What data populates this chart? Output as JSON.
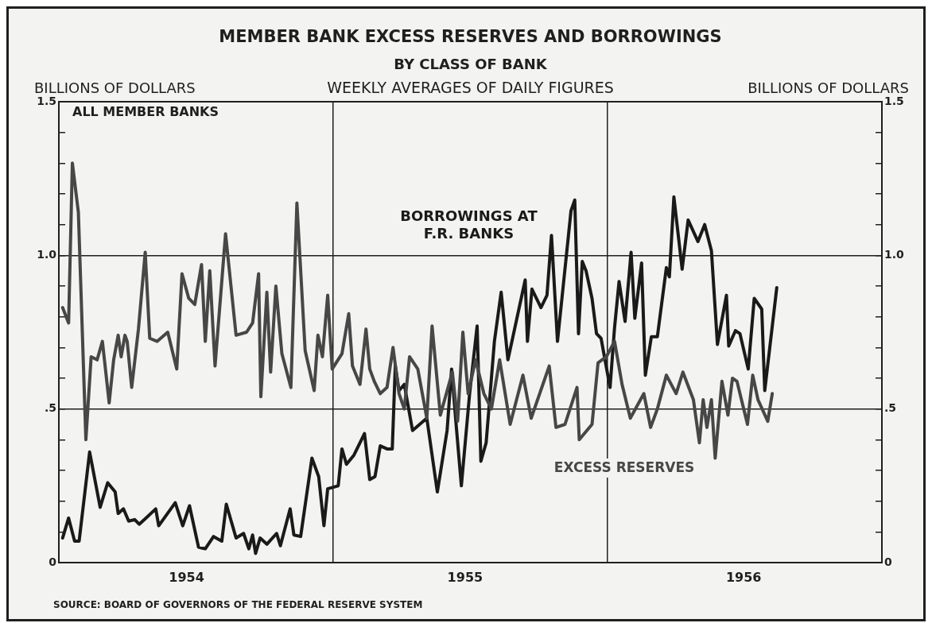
{
  "chart_data": {
    "type": "line",
    "title": "MEMBER BANK EXCESS RESERVES AND BORROWINGS",
    "subtitle": "BY CLASS OF BANK",
    "ylabel": "BILLIONS OF DOLLARS",
    "y2label": "BILLIONS OF DOLLARS",
    "annotations": [
      "WEEKLY AVERAGES OF DAILY FIGURES",
      "ALL MEMBER BANKS",
      "SOURCE: BOARD OF GOVERNORS OF THE FEDERAL RESERVE SYSTEM"
    ],
    "xlim": [
      "1954-01-01",
      "1957-01-01"
    ],
    "xticks": [
      {
        "value": "1954-06-20",
        "label": "1954"
      },
      {
        "value": "1955-01-01",
        "label": null
      },
      {
        "value": "1955-06-26",
        "label": "1955"
      },
      {
        "value": "1956-01-01",
        "label": null
      },
      {
        "value": "1956-07-01",
        "label": "1956"
      }
    ],
    "ylim": [
      0,
      1.5
    ],
    "yticks": [
      0,
      {
        "value": 0.1,
        "label": null
      },
      {
        "value": 0.2,
        "label": null
      },
      {
        "value": 0.3,
        "label": null
      },
      {
        "value": 0.4,
        "label": null
      },
      {
        "value": 0.5,
        "label": ".5"
      },
      {
        "value": 0.6,
        "label": null
      },
      {
        "value": 0.7,
        "label": null
      },
      {
        "value": 0.8,
        "label": null
      },
      {
        "value": 0.9,
        "label": null
      },
      {
        "value": 1,
        "label": "1.0"
      },
      {
        "value": 1.1,
        "label": null
      },
      {
        "value": 1.2,
        "label": null
      },
      {
        "value": 1.3,
        "label": null
      },
      {
        "value": 1.4,
        "label": null
      },
      {
        "value": 1.5,
        "label": "1.5"
      }
    ],
    "y2lim": [
      0,
      1.5
    ],
    "y2ticks": [
      0,
      {
        "value": 0.1,
        "label": null
      },
      {
        "value": 0.2,
        "label": null
      },
      {
        "value": 0.3,
        "label": null
      },
      {
        "value": 0.4,
        "label": null
      },
      {
        "value": 0.5,
        "label": ".5"
      },
      {
        "value": 0.6,
        "label": null
      },
      {
        "value": 0.7,
        "label": null
      },
      {
        "value": 0.8,
        "label": null
      },
      {
        "value": 0.9,
        "label": null
      },
      {
        "value": 1,
        "label": "1.0"
      },
      {
        "value": 1.1,
        "label": null
      },
      {
        "value": 1.2,
        "label": null
      },
      {
        "value": 1.3,
        "label": null
      },
      {
        "value": 1.4,
        "label": null
      },
      {
        "value": 1.5,
        "label": "1.5"
      }
    ],
    "grid": true,
    "series": [
      {
        "name": "EXCESS RESERVES",
        "color": "#474747",
        "x": [
          "1954-01-06",
          "1954-01-14",
          "1954-01-19",
          "1954-01-27",
          "1954-02-06",
          "1954-02-13",
          "1954-02-21",
          "1954-02-28",
          "1954-03-09",
          "1954-03-15",
          "1954-03-21",
          "1954-03-25",
          "1954-03-30",
          "1954-04-02",
          "1954-04-08",
          "1954-04-17",
          "1954-04-26",
          "1954-05-02",
          "1954-05-12",
          "1954-05-26",
          "1954-06-07",
          "1954-06-14",
          "1954-06-23",
          "1954-07-01",
          "1954-07-10",
          "1954-07-15",
          "1954-07-21",
          "1954-07-28",
          "1954-08-11",
          "1954-08-25",
          "1954-09-08",
          "1954-09-16",
          "1954-09-24",
          "1954-09-27",
          "1954-10-05",
          "1954-10-10",
          "1954-10-17",
          "1954-10-25",
          "1954-11-06",
          "1954-11-14",
          "1954-11-25",
          "1954-12-07",
          "1954-12-12",
          "1954-12-18",
          "1954-12-25",
          "1954-12-31",
          "1955-01-13",
          "1955-01-22",
          "1955-01-27",
          "1955-02-06",
          "1955-02-14",
          "1955-02-19",
          "1955-02-25",
          "1955-03-05",
          "1955-03-14",
          "1955-03-22",
          "1955-03-30",
          "1955-04-06",
          "1955-04-13",
          "1955-04-24",
          "1955-05-06",
          "1955-05-13",
          "1955-05-24",
          "1955-06-09",
          "1955-06-16",
          "1955-06-23",
          "1955-06-30",
          "1955-07-10",
          "1955-07-21",
          "1955-07-31",
          "1955-08-11",
          "1955-08-25",
          "1955-09-11",
          "1955-09-22",
          "1955-10-16",
          "1955-10-25",
          "1955-11-06",
          "1955-11-22",
          "1955-11-25",
          "1955-12-12",
          "1955-12-20",
          "1955-12-31",
          "1956-01-11",
          "1956-01-21",
          "1956-02-01",
          "1956-02-19",
          "1956-02-28",
          "1956-03-08",
          "1956-03-20",
          "1956-04-02",
          "1956-04-11",
          "1956-04-25",
          "1956-05-03",
          "1956-05-08",
          "1956-05-13",
          "1956-05-19",
          "1956-05-24",
          "1956-06-02",
          "1956-06-10",
          "1956-06-16",
          "1956-06-22",
          "1956-07-06",
          "1956-07-13",
          "1956-07-20",
          "1956-08-02",
          "1956-08-08"
        ],
        "values": [
          0.83,
          0.78,
          1.3,
          1.14,
          0.4,
          0.67,
          0.66,
          0.72,
          0.52,
          0.66,
          0.74,
          0.67,
          0.74,
          0.72,
          0.57,
          0.76,
          1.01,
          0.73,
          0.72,
          0.75,
          0.63,
          0.94,
          0.86,
          0.84,
          0.97,
          0.72,
          0.95,
          0.64,
          1.07,
          0.74,
          0.75,
          0.78,
          0.94,
          0.54,
          0.88,
          0.62,
          0.9,
          0.68,
          0.57,
          1.17,
          0.69,
          0.56,
          0.74,
          0.67,
          0.87,
          0.63,
          0.68,
          0.81,
          0.64,
          0.58,
          0.76,
          0.63,
          0.59,
          0.55,
          0.57,
          0.7,
          0.55,
          0.5,
          0.67,
          0.63,
          0.47,
          0.77,
          0.48,
          0.62,
          0.46,
          0.75,
          0.55,
          0.66,
          0.55,
          0.5,
          0.66,
          0.45,
          0.61,
          0.47,
          0.64,
          0.44,
          0.45,
          0.57,
          0.4,
          0.45,
          0.65,
          0.67,
          0.72,
          0.58,
          0.47,
          0.55,
          0.44,
          0.5,
          0.61,
          0.55,
          0.62,
          0.53,
          0.39,
          0.53,
          0.44,
          0.53,
          0.34,
          0.59,
          0.48,
          0.6,
          0.59,
          0.45,
          0.61,
          0.53,
          0.46,
          0.55
        ]
      },
      {
        "name": "BORROWINGS AT F.R. BANKS",
        "color": "#1a1a1a",
        "x": [
          "1954-01-06",
          "1954-01-14",
          "1954-01-22",
          "1954-01-28",
          "1954-02-11",
          "1954-02-25",
          "1954-03-07",
          "1954-03-17",
          "1954-03-21",
          "1954-03-28",
          "1954-04-04",
          "1954-04-12",
          "1954-04-18",
          "1954-04-27",
          "1954-05-10",
          "1954-05-14",
          "1954-06-05",
          "1954-06-15",
          "1954-06-24",
          "1954-07-06",
          "1954-07-15",
          "1954-07-26",
          "1954-08-06",
          "1954-08-12",
          "1954-08-25",
          "1954-09-04",
          "1954-09-11",
          "1954-09-16",
          "1954-09-20",
          "1954-09-26",
          "1954-10-05",
          "1954-10-18",
          "1954-10-23",
          "1954-11-05",
          "1954-11-10",
          "1954-11-19",
          "1954-12-04",
          "1954-12-13",
          "1954-12-20",
          "1954-12-25",
          "1955-01-08",
          "1955-01-13",
          "1955-01-19",
          "1955-01-29",
          "1955-02-12",
          "1955-02-19",
          "1955-02-26",
          "1955-03-05",
          "1955-03-14",
          "1955-03-21",
          "1955-03-25",
          "1955-03-30",
          "1955-04-06",
          "1955-04-17",
          "1955-05-06",
          "1955-05-20",
          "1955-06-02",
          "1955-06-08",
          "1955-06-14",
          "1955-06-21",
          "1955-07-02",
          "1955-07-12",
          "1955-07-17",
          "1955-07-24",
          "1955-08-04",
          "1955-08-13",
          "1955-08-22",
          "1955-09-14",
          "1955-09-17",
          "1955-09-23",
          "1955-10-05",
          "1955-10-13",
          "1955-10-19",
          "1955-10-27",
          "1955-11-14",
          "1955-11-19",
          "1955-11-24",
          "1955-11-29",
          "1955-12-04",
          "1955-12-12",
          "1955-12-18",
          "1955-12-24",
          "1956-01-05",
          "1956-01-11",
          "1956-01-17",
          "1956-01-25",
          "1956-02-02",
          "1956-02-07",
          "1956-02-16",
          "1956-02-21",
          "1956-02-29",
          "1956-03-08",
          "1956-03-20",
          "1956-03-24",
          "1956-03-30",
          "1956-04-10",
          "1956-04-18",
          "1956-05-01",
          "1956-05-10",
          "1956-05-19",
          "1956-05-27",
          "1956-06-08",
          "1956-06-11",
          "1956-06-20",
          "1956-06-26",
          "1956-07-07",
          "1956-07-15",
          "1956-07-25",
          "1956-07-29",
          "1956-08-14"
        ],
        "values": [
          0.08,
          0.145,
          0.07,
          0.07,
          0.36,
          0.18,
          0.26,
          0.23,
          0.16,
          0.175,
          0.135,
          0.14,
          0.125,
          0.145,
          0.175,
          0.12,
          0.195,
          0.12,
          0.185,
          0.05,
          0.045,
          0.085,
          0.07,
          0.19,
          0.08,
          0.095,
          0.045,
          0.09,
          0.03,
          0.08,
          0.06,
          0.095,
          0.055,
          0.175,
          0.09,
          0.085,
          0.34,
          0.28,
          0.12,
          0.24,
          0.25,
          0.37,
          0.32,
          0.35,
          0.42,
          0.27,
          0.28,
          0.38,
          0.37,
          0.37,
          0.64,
          0.56,
          0.58,
          0.43,
          0.47,
          0.23,
          0.43,
          0.63,
          0.45,
          0.25,
          0.55,
          0.77,
          0.33,
          0.39,
          0.72,
          0.88,
          0.66,
          0.92,
          0.72,
          0.89,
          0.83,
          0.87,
          1.065,
          0.72,
          1.145,
          1.18,
          0.745,
          0.98,
          0.95,
          0.86,
          0.745,
          0.73,
          0.57,
          0.765,
          0.915,
          0.785,
          1.01,
          0.795,
          0.975,
          0.61,
          0.735,
          0.735,
          0.96,
          0.93,
          1.19,
          0.955,
          1.115,
          1.045,
          1.1,
          1.015,
          0.71,
          0.87,
          0.705,
          0.755,
          0.745,
          0.63,
          0.86,
          0.825,
          0.56,
          0.895
        ]
      }
    ]
  }
}
